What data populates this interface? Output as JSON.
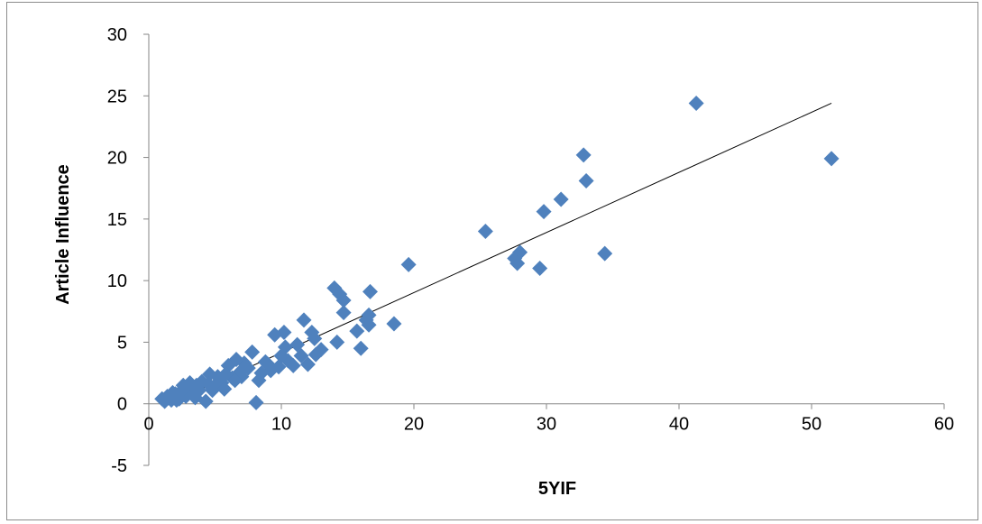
{
  "chart_data": {
    "type": "scatter",
    "title": "",
    "xlabel": "5YIF",
    "ylabel": "Article Influence",
    "xlim": [
      0,
      60
    ],
    "ylim": [
      -5,
      30
    ],
    "xticks": [
      0,
      10,
      20,
      30,
      40,
      50,
      60
    ],
    "yticks": [
      -5,
      0,
      5,
      10,
      15,
      20,
      25,
      30
    ],
    "grid": false,
    "legend": "none",
    "marker": "diamond",
    "colors": {
      "marker": "#4f81bd",
      "trendline": "#000000",
      "axis": "#868686",
      "frame": "#8c8c8c"
    },
    "trendline": {
      "x": [
        1.5,
        51.5
      ],
      "y": [
        0.0,
        24.4
      ]
    },
    "series": [
      {
        "points": [
          [
            51.5,
            19.9
          ],
          [
            41.3,
            24.4
          ],
          [
            32.8,
            20.2
          ],
          [
            33.0,
            18.1
          ],
          [
            31.1,
            16.6
          ],
          [
            29.8,
            15.6
          ],
          [
            34.4,
            12.2
          ],
          [
            29.5,
            11.0
          ],
          [
            28.0,
            12.3
          ],
          [
            27.6,
            11.8
          ],
          [
            27.8,
            11.4
          ],
          [
            25.4,
            14.0
          ],
          [
            19.6,
            11.3
          ],
          [
            18.5,
            6.5
          ],
          [
            16.7,
            9.1
          ],
          [
            16.6,
            7.2
          ],
          [
            16.4,
            6.8
          ],
          [
            16.6,
            6.4
          ],
          [
            16.0,
            4.5
          ],
          [
            15.7,
            5.9
          ],
          [
            14.7,
            8.4
          ],
          [
            14.4,
            8.9
          ],
          [
            14.0,
            9.4
          ],
          [
            14.7,
            7.4
          ],
          [
            14.2,
            5.0
          ],
          [
            12.3,
            5.8
          ],
          [
            11.7,
            6.8
          ],
          [
            12.6,
            4.0
          ],
          [
            12.0,
            3.2
          ],
          [
            11.5,
            3.9
          ],
          [
            10.9,
            3.1
          ],
          [
            10.2,
            5.8
          ],
          [
            10.3,
            4.6
          ],
          [
            9.5,
            5.6
          ],
          [
            10.5,
            3.5
          ],
          [
            9.8,
            3.0
          ],
          [
            9.2,
            2.7
          ],
          [
            8.8,
            3.4
          ],
          [
            8.5,
            2.5
          ],
          [
            8.1,
            0.1
          ],
          [
            7.8,
            4.2
          ],
          [
            7.5,
            2.9
          ],
          [
            7.2,
            3.3
          ],
          [
            6.9,
            2.6
          ],
          [
            6.6,
            3.6
          ],
          [
            6.3,
            2.1
          ],
          [
            6.0,
            3.1
          ],
          [
            5.8,
            2.4
          ],
          [
            5.5,
            1.7
          ],
          [
            5.2,
            2.2
          ],
          [
            4.9,
            1.4
          ],
          [
            4.6,
            2.4
          ],
          [
            4.3,
            0.2
          ],
          [
            4.0,
            1.8
          ],
          [
            3.8,
            1.1
          ],
          [
            3.6,
            1.5
          ],
          [
            3.3,
            0.8
          ],
          [
            3.0,
            1.3
          ],
          [
            2.8,
            0.6
          ],
          [
            2.5,
            1.1
          ],
          [
            2.3,
            0.4
          ],
          [
            2.0,
            0.8
          ],
          [
            1.7,
            0.3
          ],
          [
            1.4,
            0.6
          ],
          [
            1.2,
            0.2
          ],
          [
            1.0,
            0.4
          ],
          [
            13.0,
            4.4
          ],
          [
            12.5,
            5.3
          ],
          [
            11.2,
            4.8
          ],
          [
            10.0,
            3.9
          ],
          [
            9.0,
            3.2
          ],
          [
            8.3,
            1.9
          ],
          [
            7.0,
            2.2
          ],
          [
            6.5,
            1.9
          ],
          [
            5.7,
            1.2
          ],
          [
            4.8,
            1.1
          ],
          [
            4.5,
            1.6
          ],
          [
            3.5,
            0.5
          ],
          [
            3.1,
            1.7
          ],
          [
            2.6,
            1.5
          ],
          [
            2.1,
            0.3
          ],
          [
            1.8,
            0.9
          ]
        ]
      }
    ]
  }
}
